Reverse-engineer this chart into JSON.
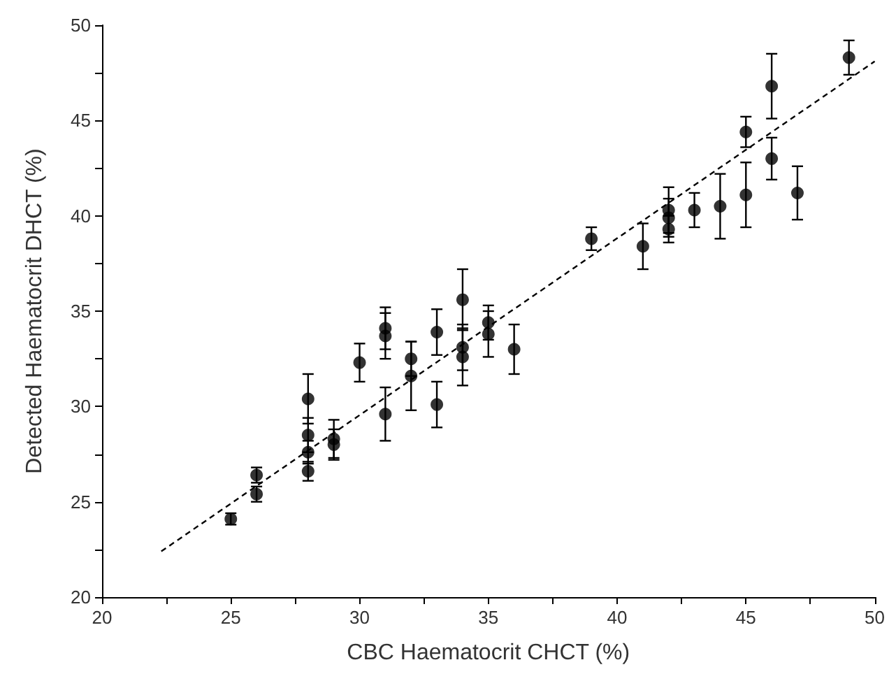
{
  "chart_data": {
    "type": "scatter",
    "xlabel": "CBC Haematocrit CHCT (%)",
    "ylabel": "Detected Haematocrit DHCT (%)",
    "xlim": [
      20,
      50
    ],
    "xticks": [
      20,
      25,
      30,
      35,
      40,
      45,
      50
    ],
    "ylim": [
      20,
      50
    ],
    "yticks": [
      20,
      25,
      30,
      35,
      40,
      45,
      50
    ],
    "grid": false,
    "series": [
      {
        "color": "#000000",
        "marker": "circle",
        "x": [
          25,
          26,
          26,
          28,
          28,
          28,
          28,
          29,
          29,
          30,
          31,
          31,
          31,
          32,
          32,
          33,
          33,
          34,
          34,
          34,
          35,
          35,
          36,
          39,
          41,
          42,
          42,
          42,
          43,
          44,
          45,
          45,
          46,
          46,
          47,
          49
        ],
        "values": [
          24.1,
          26.4,
          25.4,
          30.4,
          28.5,
          27.6,
          26.6,
          28.3,
          28.0,
          32.3,
          34.1,
          33.7,
          29.6,
          32.5,
          31.6,
          33.9,
          30.1,
          35.6,
          33.1,
          32.6,
          34.4,
          33.8,
          33.0,
          38.8,
          38.4,
          40.3,
          39.9,
          39.3,
          40.3,
          40.5,
          44.4,
          41.1,
          46.8,
          43.0,
          41.2,
          48.3
        ],
        "errors": [
          0.3,
          0.4,
          0.4,
          1.3,
          0.9,
          0.6,
          0.5,
          1.0,
          0.8,
          1.0,
          1.1,
          1.2,
          1.4,
          0.9,
          1.8,
          1.2,
          1.2,
          1.6,
          1.2,
          1.5,
          0.9,
          1.2,
          1.3,
          0.6,
          1.2,
          1.2,
          1.0,
          0.7,
          0.9,
          1.7,
          0.8,
          1.7,
          1.7,
          1.1,
          1.4,
          0.9
        ]
      },
      {
        "type": "line",
        "color": "#000000",
        "marker": "none",
        "line_style": "dashed",
        "x": [
          22.3,
          50
        ],
        "values": [
          22.4,
          48.1
        ]
      }
    ]
  }
}
